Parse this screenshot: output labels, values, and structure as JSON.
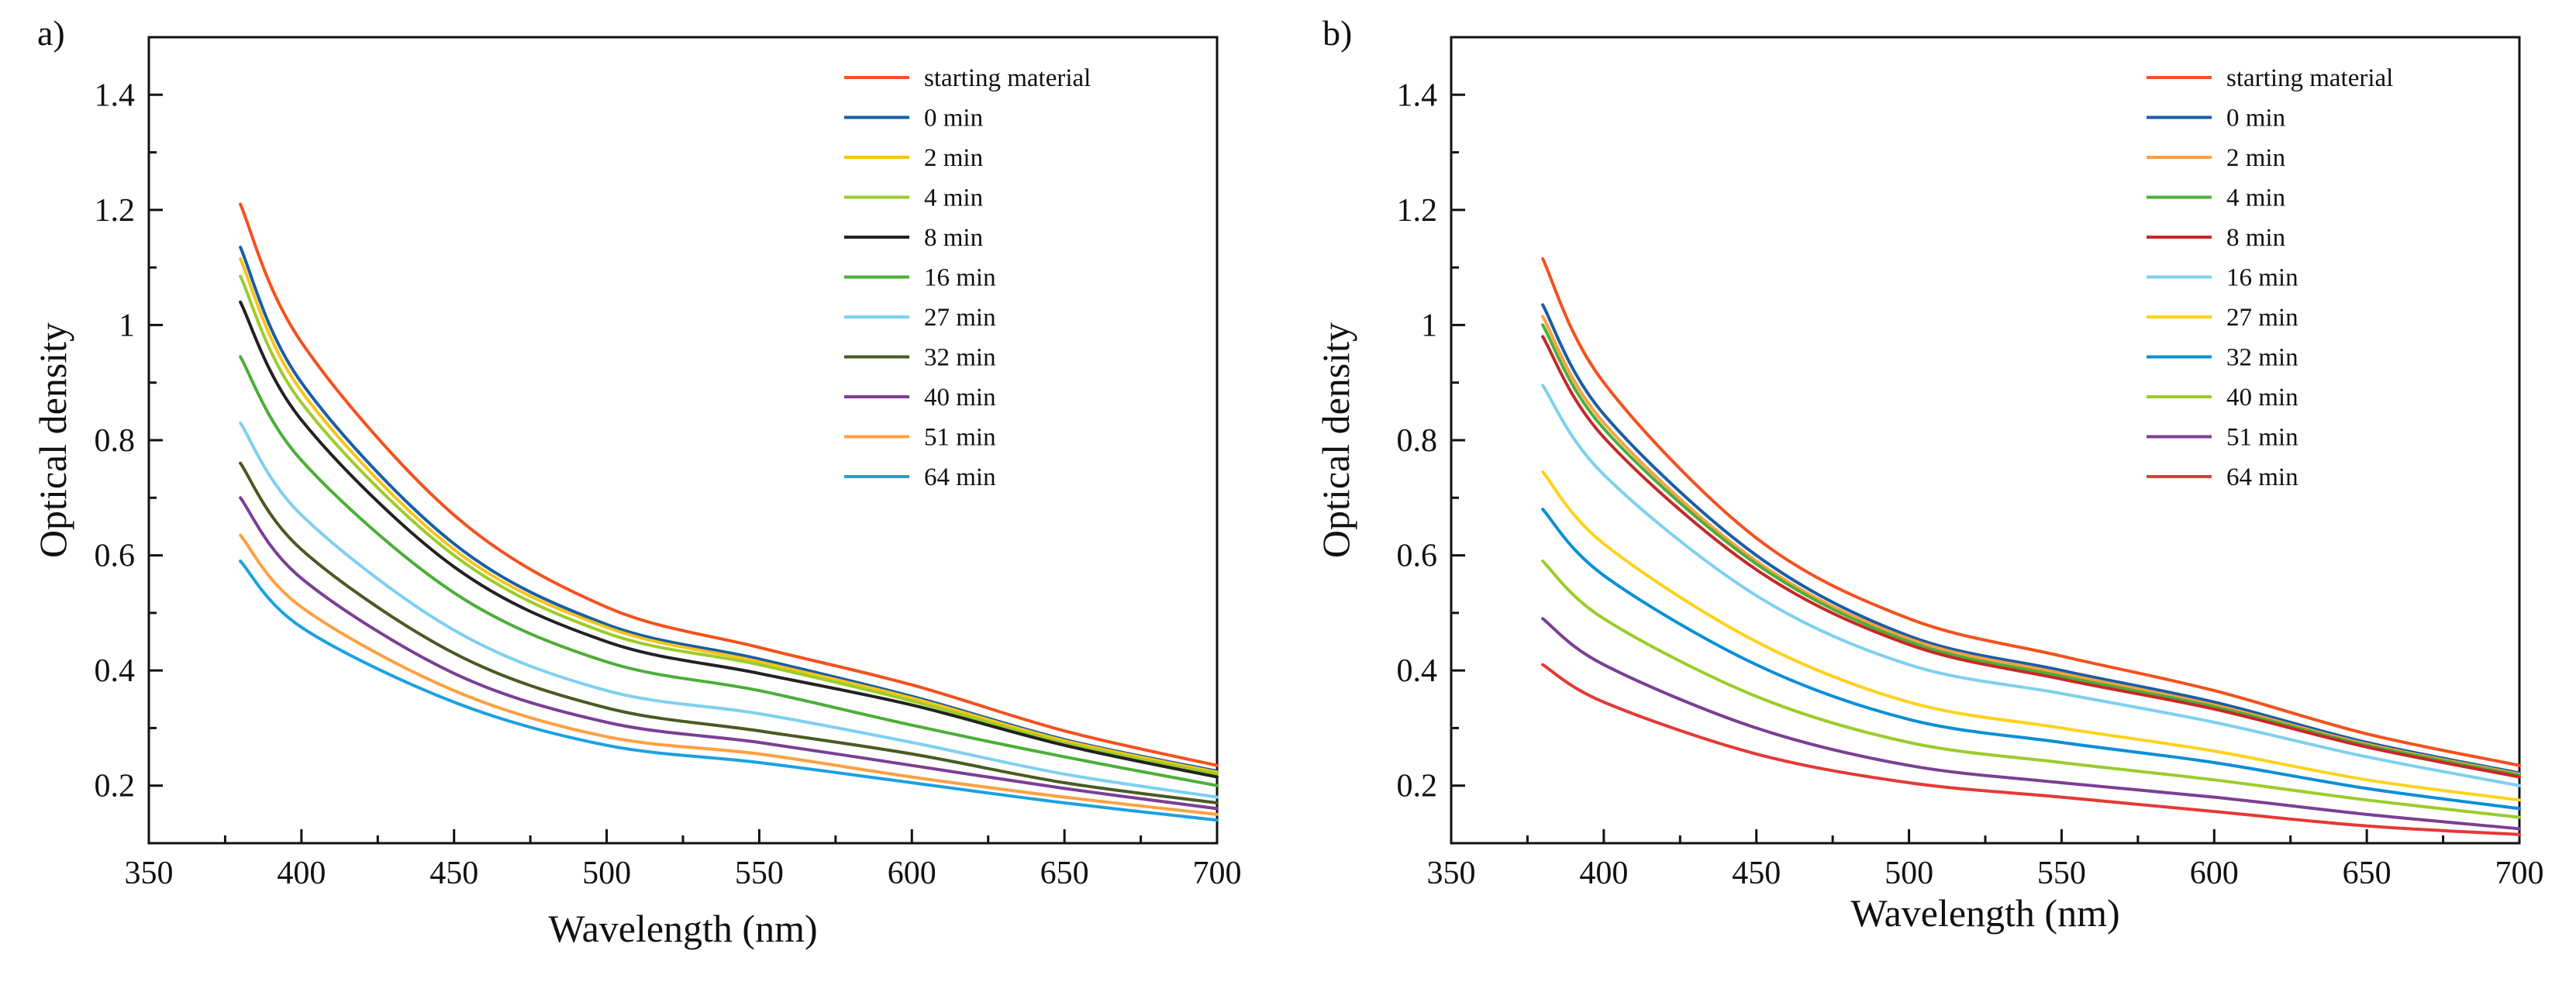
{
  "chart_data": [
    {
      "type": "line",
      "panel_label": "a)",
      "xlabel": "Wavelength (nm)",
      "ylabel": "Optical density",
      "xlim": [
        350,
        700
      ],
      "ylim": [
        0.1,
        1.5
      ],
      "x_ticks": [
        350,
        400,
        450,
        500,
        550,
        600,
        650,
        700
      ],
      "y_ticks": [
        0.2,
        0.4,
        0.6,
        0.8,
        1,
        1.2,
        1.4
      ],
      "x_tick_labels": [
        "350",
        "400",
        "450",
        "500",
        "550",
        "600",
        "650",
        "700"
      ],
      "y_tick_labels": [
        "0.2",
        "0.4",
        "0.6",
        "0.8",
        "1",
        "1.2",
        "1.4"
      ],
      "legend_position": "top-right",
      "x": [
        380,
        400,
        450,
        500,
        550,
        600,
        650,
        700
      ],
      "series": [
        {
          "name": "starting material",
          "color": "#f4511e",
          "values": [
            1.21,
            0.97,
            0.67,
            0.51,
            0.44,
            0.375,
            0.295,
            0.235
          ]
        },
        {
          "name": "0 min",
          "color": "#1a5da8",
          "values": [
            1.135,
            0.9,
            0.62,
            0.48,
            0.42,
            0.355,
            0.28,
            0.225
          ]
        },
        {
          "name": "2 min",
          "color": "#f5c518",
          "values": [
            1.115,
            0.885,
            0.61,
            0.475,
            0.415,
            0.352,
            0.278,
            0.223
          ]
        },
        {
          "name": "4 min",
          "color": "#9ccc2b",
          "values": [
            1.085,
            0.865,
            0.6,
            0.465,
            0.41,
            0.347,
            0.274,
            0.22
          ]
        },
        {
          "name": "8 min",
          "color": "#222222",
          "values": [
            1.04,
            0.835,
            0.58,
            0.45,
            0.395,
            0.34,
            0.27,
            0.215
          ]
        },
        {
          "name": "16 min",
          "color": "#4caf38",
          "values": [
            0.945,
            0.765,
            0.535,
            0.415,
            0.365,
            0.305,
            0.25,
            0.2
          ]
        },
        {
          "name": "27 min",
          "color": "#7fd0f0",
          "values": [
            0.83,
            0.67,
            0.47,
            0.365,
            0.325,
            0.275,
            0.22,
            0.18
          ]
        },
        {
          "name": "32 min",
          "color": "#4a5a22",
          "values": [
            0.76,
            0.61,
            0.43,
            0.335,
            0.295,
            0.255,
            0.205,
            0.17
          ]
        },
        {
          "name": "40 min",
          "color": "#7b3f94",
          "values": [
            0.7,
            0.56,
            0.395,
            0.31,
            0.275,
            0.235,
            0.195,
            0.16
          ]
        },
        {
          "name": "51 min",
          "color": "#ffa040",
          "values": [
            0.635,
            0.51,
            0.365,
            0.285,
            0.255,
            0.215,
            0.18,
            0.15
          ]
        },
        {
          "name": "64 min",
          "color": "#1ba1e2",
          "values": [
            0.59,
            0.475,
            0.345,
            0.27,
            0.24,
            0.205,
            0.17,
            0.14
          ]
        }
      ]
    },
    {
      "type": "line",
      "panel_label": "b)",
      "xlabel": "Wavelength (nm)",
      "ylabel": "Optical density",
      "xlim": [
        350,
        700
      ],
      "ylim": [
        0.1,
        1.5
      ],
      "x_ticks": [
        350,
        400,
        450,
        500,
        550,
        600,
        650,
        700
      ],
      "y_ticks": [
        0.2,
        0.4,
        0.6,
        0.8,
        1,
        1.2,
        1.4
      ],
      "x_tick_labels": [
        "350",
        "400",
        "450",
        "500",
        "550",
        "600",
        "650",
        "700"
      ],
      "y_tick_labels": [
        "0.2",
        "0.4",
        "0.6",
        "0.8",
        "1",
        "1.2",
        "1.4"
      ],
      "legend_position": "top-right",
      "x": [
        380,
        400,
        450,
        500,
        550,
        600,
        650,
        700
      ],
      "series": [
        {
          "name": "starting material",
          "color": "#f4511e",
          "values": [
            1.115,
            0.9,
            0.63,
            0.49,
            0.425,
            0.365,
            0.29,
            0.235
          ]
        },
        {
          "name": "0 min",
          "color": "#1a5da8",
          "values": [
            1.035,
            0.845,
            0.6,
            0.46,
            0.4,
            0.345,
            0.275,
            0.222
          ]
        },
        {
          "name": "2 min",
          "color": "#ffa040",
          "values": [
            1.015,
            0.83,
            0.59,
            0.455,
            0.395,
            0.34,
            0.272,
            0.22
          ]
        },
        {
          "name": "4 min",
          "color": "#4caf38",
          "values": [
            1.0,
            0.82,
            0.585,
            0.45,
            0.39,
            0.337,
            0.27,
            0.218
          ]
        },
        {
          "name": "8 min",
          "color": "#c62828",
          "values": [
            0.98,
            0.805,
            0.575,
            0.445,
            0.385,
            0.333,
            0.267,
            0.215
          ]
        },
        {
          "name": "16 min",
          "color": "#7fd0f0",
          "values": [
            0.895,
            0.74,
            0.53,
            0.41,
            0.36,
            0.31,
            0.25,
            0.2
          ]
        },
        {
          "name": "27 min",
          "color": "#ffd21a",
          "values": [
            0.745,
            0.62,
            0.45,
            0.345,
            0.3,
            0.26,
            0.21,
            0.175
          ]
        },
        {
          "name": "32 min",
          "color": "#0a8fd6",
          "values": [
            0.68,
            0.565,
            0.41,
            0.315,
            0.275,
            0.24,
            0.195,
            0.16
          ]
        },
        {
          "name": "40 min",
          "color": "#9ccc2b",
          "values": [
            0.59,
            0.49,
            0.355,
            0.275,
            0.24,
            0.21,
            0.175,
            0.145
          ]
        },
        {
          "name": "51 min",
          "color": "#7b3f94",
          "values": [
            0.49,
            0.41,
            0.3,
            0.235,
            0.205,
            0.18,
            0.15,
            0.125
          ]
        },
        {
          "name": "64 min",
          "color": "#e53935",
          "values": [
            0.41,
            0.345,
            0.255,
            0.205,
            0.18,
            0.155,
            0.13,
            0.115
          ]
        }
      ]
    }
  ]
}
